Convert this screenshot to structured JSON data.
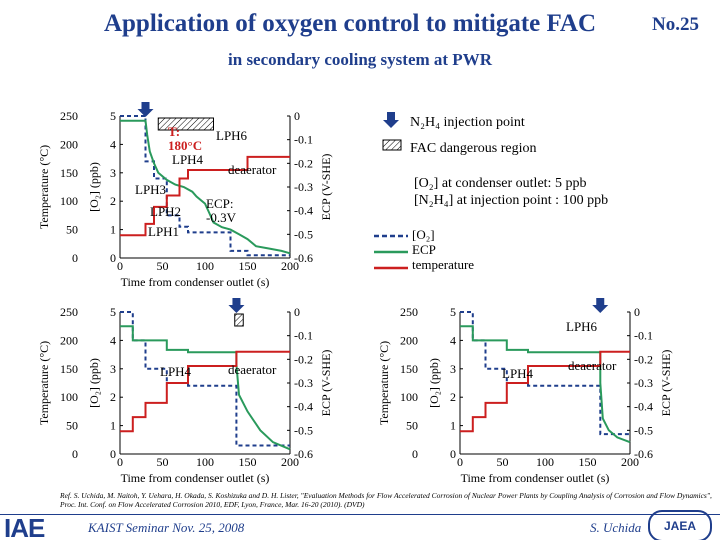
{
  "header": {
    "title": "Application of oxygen control to mitigate FAC",
    "subtitle": "in secondary cooling system at PWR",
    "slide_number": "No.25"
  },
  "legend": {
    "n2h4_label": "N₂H₄ injection point",
    "fac_label": "FAC dangerous region",
    "o2_label": "[O₂]",
    "ecp_label": "ECP",
    "temp_label": "temperature"
  },
  "conditions": {
    "line1": "[O₂] at condenser outlet: 5 ppb",
    "line2": "[N₂H₄] at injection point : 100 ppb"
  },
  "axis_labels": {
    "temperature": "Temperature (°C)",
    "o2": "[O₂] (ppb)",
    "ecp": "ECP (V-SHE)",
    "x": "Time from condenser outlet (s)"
  },
  "colors": {
    "title": "#1f3e8c",
    "o2": "#1f3e8c",
    "ecp": "#2a9a5c",
    "temperature": "#cc1f1f",
    "arrow": "#1f3e8c"
  },
  "chart_data": [
    {
      "type": "line",
      "panel": "top-left",
      "x_ticks": [
        "0",
        "50",
        "100",
        "150",
        "200"
      ],
      "temp_ticks": [
        "250",
        "200",
        "150",
        "100",
        "50",
        "0"
      ],
      "o2_ticks": [
        "5",
        "4",
        "3",
        "2",
        "1",
        "0"
      ],
      "ecp_ticks": [
        "0",
        "-0.1",
        "-0.2",
        "-0.3",
        "-0.4",
        "-0.5",
        "-0.6"
      ],
      "xlim": [
        0,
        200
      ],
      "temp_lim": [
        0,
        250
      ],
      "o2_lim": [
        0,
        5
      ],
      "ecp_lim": [
        -0.6,
        0
      ],
      "x_label": "Time from condenser outlet (s)",
      "annotations": [
        "T:",
        "180°C",
        "LPH6",
        "LPH4",
        "deaerator",
        "LPH3",
        "LPH2",
        "ECP:",
        "-0.3V",
        "LPH1"
      ],
      "n2h4_injection_x": 30,
      "fac_region": [
        45,
        110
      ],
      "series": [
        {
          "name": "[O₂]",
          "axis": "o2",
          "x": [
            0,
            30,
            30,
            40,
            40,
            55,
            55,
            70,
            70,
            80,
            80,
            130,
            130,
            150,
            150,
            200
          ],
          "y": [
            5,
            5,
            3.4,
            3.4,
            2.8,
            2.8,
            1.5,
            1.5,
            1.1,
            1.1,
            0.9,
            0.9,
            0.25,
            0.25,
            0.1,
            0.1
          ]
        },
        {
          "name": "ECP",
          "axis": "ecp",
          "x": [
            0,
            30,
            32,
            35,
            40,
            45,
            55,
            65,
            75,
            85,
            90,
            100,
            105,
            110,
            120,
            130,
            140,
            150,
            160,
            175,
            190,
            200
          ],
          "y": [
            -0.02,
            -0.02,
            -0.08,
            -0.15,
            -0.2,
            -0.24,
            -0.27,
            -0.29,
            -0.3,
            -0.32,
            -0.34,
            -0.37,
            -0.41,
            -0.45,
            -0.47,
            -0.48,
            -0.5,
            -0.52,
            -0.55,
            -0.56,
            -0.57,
            -0.58
          ]
        },
        {
          "name": "temperature",
          "axis": "temp",
          "x": [
            0,
            30,
            30,
            40,
            40,
            55,
            55,
            70,
            70,
            80,
            80,
            150,
            150,
            200
          ],
          "y": [
            40,
            40,
            60,
            60,
            90,
            90,
            110,
            110,
            140,
            140,
            155,
            155,
            178,
            178
          ]
        }
      ]
    },
    {
      "type": "line",
      "panel": "bottom-left",
      "x_ticks": [
        "0",
        "50",
        "100",
        "150",
        "200"
      ],
      "temp_ticks": [
        "250",
        "200",
        "150",
        "100",
        "50",
        "0"
      ],
      "o2_ticks": [
        "5",
        "4",
        "3",
        "2",
        "1",
        "0"
      ],
      "ecp_ticks": [
        "0",
        "-0.1",
        "-0.2",
        "-0.3",
        "-0.4",
        "-0.5",
        "-0.6"
      ],
      "xlim": [
        0,
        200
      ],
      "temp_lim": [
        0,
        250
      ],
      "o2_lim": [
        0,
        5
      ],
      "ecp_lim": [
        -0.6,
        0
      ],
      "x_label": "Time from condenser outlet (s)",
      "annotations": [
        "LPH4",
        "deaerator"
      ],
      "n2h4_injection_x": 137,
      "fac_region": [
        135,
        145
      ],
      "series": [
        {
          "name": "[O₂]",
          "axis": "o2",
          "x": [
            0,
            15,
            15,
            30,
            30,
            55,
            55,
            80,
            80,
            137,
            137,
            200
          ],
          "y": [
            5,
            5,
            4,
            4,
            3,
            3,
            2.5,
            2.5,
            2.4,
            2.4,
            0.3,
            0.3
          ]
        },
        {
          "name": "ECP",
          "axis": "ecp",
          "x": [
            0,
            15,
            15,
            55,
            55,
            80,
            80,
            137,
            137,
            140,
            150,
            165,
            180,
            200
          ],
          "y": [
            -0.06,
            -0.06,
            -0.12,
            -0.12,
            -0.16,
            -0.16,
            -0.17,
            -0.17,
            -0.22,
            -0.35,
            -0.42,
            -0.5,
            -0.55,
            -0.58
          ]
        },
        {
          "name": "temperature",
          "axis": "temp",
          "x": [
            0,
            15,
            15,
            30,
            30,
            55,
            55,
            80,
            80,
            137,
            137,
            200
          ],
          "y": [
            40,
            40,
            65,
            65,
            90,
            90,
            125,
            125,
            155,
            155,
            180,
            180
          ]
        }
      ]
    },
    {
      "type": "line",
      "panel": "bottom-right",
      "x_ticks": [
        "0",
        "50",
        "100",
        "150",
        "200"
      ],
      "temp_ticks": [
        "250",
        "200",
        "150",
        "100",
        "50",
        "0"
      ],
      "o2_ticks": [
        "5",
        "4",
        "3",
        "2",
        "1",
        "0"
      ],
      "ecp_ticks": [
        "0",
        "-0.1",
        "-0.2",
        "-0.3",
        "-0.4",
        "-0.5",
        "-0.6"
      ],
      "xlim": [
        0,
        200
      ],
      "temp_lim": [
        0,
        250
      ],
      "o2_lim": [
        0,
        5
      ],
      "ecp_lim": [
        -0.6,
        0
      ],
      "x_label": "Time from condenser outlet (s)",
      "annotations": [
        "LPH6",
        "LPH4",
        "deaerator"
      ],
      "n2h4_injection_x": 165,
      "fac_region": [],
      "series": [
        {
          "name": "[O₂]",
          "axis": "o2",
          "x": [
            0,
            15,
            15,
            30,
            30,
            55,
            55,
            80,
            80,
            165,
            165,
            200
          ],
          "y": [
            5,
            5,
            4,
            4,
            3,
            3,
            2.5,
            2.5,
            2.4,
            2.4,
            0.7,
            0.7
          ]
        },
        {
          "name": "ECP",
          "axis": "ecp",
          "x": [
            0,
            15,
            15,
            55,
            55,
            80,
            80,
            165,
            165,
            168,
            175,
            185,
            200
          ],
          "y": [
            -0.06,
            -0.06,
            -0.12,
            -0.12,
            -0.16,
            -0.16,
            -0.17,
            -0.17,
            -0.3,
            -0.45,
            -0.5,
            -0.53,
            -0.55
          ]
        },
        {
          "name": "temperature",
          "axis": "temp",
          "x": [
            0,
            15,
            15,
            30,
            30,
            55,
            55,
            80,
            80,
            165,
            165,
            200
          ],
          "y": [
            40,
            40,
            65,
            65,
            90,
            90,
            125,
            125,
            155,
            155,
            180,
            180
          ]
        }
      ]
    }
  ],
  "footer": {
    "reference": "Ref. S. Uchida, M. Naitoh, Y. Uehara, H. Okada, S. Koshizuka and D. H. Lister, \"Evaluation Methods for Flow Accelerated Corrosion of Nuclear Power Plants by Coupling Analysis of Corrosion and Flow Dynamics\", Proc. Int. Conf. on Flow Accelerated Corrosion 2010, EDF, Lyon, France, Mar. 16-20 (2010). (DVD)",
    "seminar": "KAIST Seminar  Nov. 25, 2008",
    "author": "S. Uchida",
    "logo_left": "IAE",
    "logo_right": "JAEA"
  }
}
